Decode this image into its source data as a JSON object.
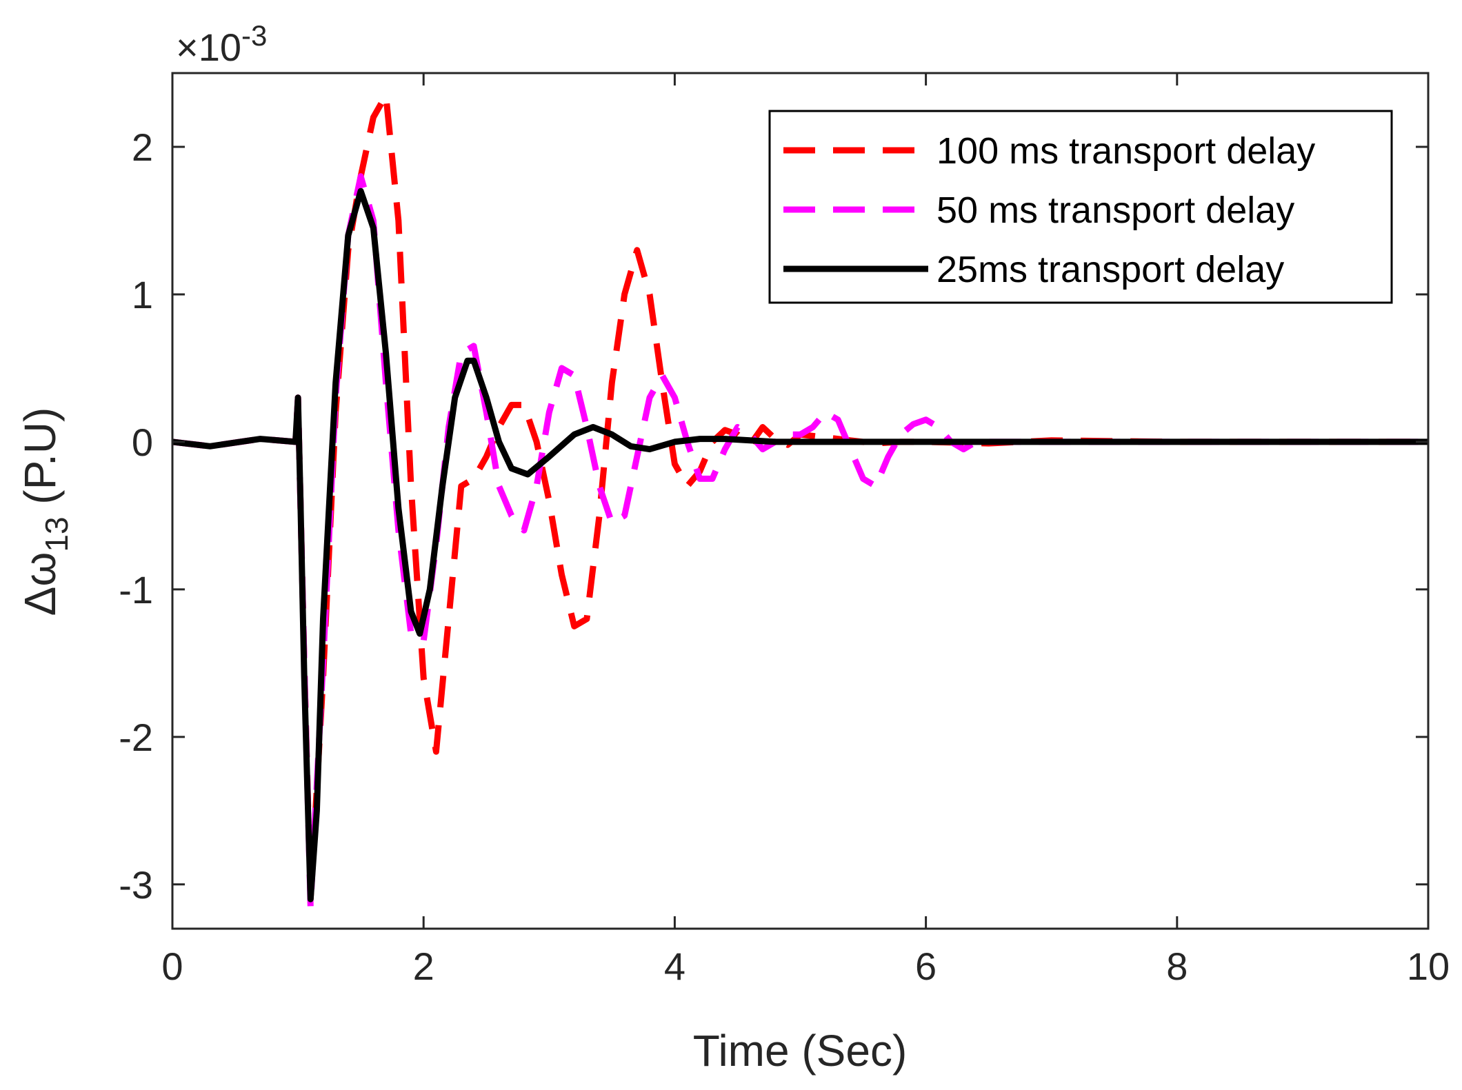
{
  "chart_data": {
    "type": "line",
    "title": "",
    "xlabel": "Time (Sec)",
    "ylabel_prefix": "Δω",
    "ylabel_subscript": "13",
    "ylabel_suffix": " (P.U)",
    "y_exponent_base": "×10",
    "y_exponent_power": "-3",
    "xlim": [
      0,
      10
    ],
    "ylim": [
      -3.3,
      2.5
    ],
    "xticks": [
      0,
      2,
      4,
      6,
      8,
      10
    ],
    "xtick_labels": [
      "0",
      "2",
      "4",
      "6",
      "8",
      "10"
    ],
    "yticks": [
      -3,
      -2,
      -1,
      0,
      1,
      2
    ],
    "ytick_labels": [
      "-3",
      "-2",
      "-1",
      "0",
      "1",
      "2"
    ],
    "grid": false,
    "legend_position": "top-right",
    "series": [
      {
        "name": "100 ms transport delay",
        "color": "#ff0000",
        "style": "dashed",
        "x": [
          0,
          0.3,
          0.7,
          0.98,
          1.0,
          1.05,
          1.1,
          1.2,
          1.3,
          1.4,
          1.5,
          1.6,
          1.7,
          1.8,
          1.9,
          2.0,
          2.1,
          2.2,
          2.3,
          2.4,
          2.5,
          2.6,
          2.7,
          2.8,
          2.9,
          3.0,
          3.1,
          3.2,
          3.3,
          3.4,
          3.5,
          3.6,
          3.7,
          3.8,
          3.9,
          4.0,
          4.1,
          4.2,
          4.3,
          4.4,
          4.5,
          4.6,
          4.7,
          4.8,
          4.9,
          5.0,
          5.2,
          5.4,
          5.6,
          5.8,
          6.0,
          6.5,
          7.0,
          8.0,
          9.0,
          10.0
        ],
        "y": [
          0,
          -0.03,
          0.02,
          0,
          0.3,
          -1.5,
          -3.1,
          -1.6,
          0.2,
          1.3,
          1.8,
          2.2,
          2.35,
          1.5,
          -0.3,
          -1.6,
          -2.1,
          -1.2,
          -0.3,
          -0.25,
          -0.1,
          0.1,
          0.25,
          0.25,
          0.0,
          -0.4,
          -0.9,
          -1.25,
          -1.2,
          -0.5,
          0.4,
          1.0,
          1.3,
          1.0,
          0.4,
          -0.15,
          -0.3,
          -0.2,
          0.0,
          0.08,
          0.05,
          -0.02,
          0.1,
          0.02,
          -0.02,
          0.05,
          0.03,
          0.01,
          -0.01,
          0.0,
          0.0,
          -0.01,
          0.01,
          0.0,
          0.0,
          0.0
        ]
      },
      {
        "name": "50 ms transport delay",
        "color": "#ff00ff",
        "style": "dashed",
        "x": [
          0,
          0.3,
          0.7,
          0.98,
          1.0,
          1.05,
          1.1,
          1.2,
          1.3,
          1.4,
          1.5,
          1.6,
          1.7,
          1.8,
          1.9,
          2.0,
          2.1,
          2.2,
          2.3,
          2.4,
          2.5,
          2.6,
          2.7,
          2.8,
          2.9,
          3.0,
          3.1,
          3.2,
          3.3,
          3.4,
          3.5,
          3.6,
          3.7,
          3.8,
          3.9,
          4.0,
          4.1,
          4.2,
          4.3,
          4.4,
          4.5,
          4.6,
          4.7,
          4.8,
          4.9,
          5.0,
          5.1,
          5.2,
          5.3,
          5.4,
          5.5,
          5.6,
          5.7,
          5.8,
          5.9,
          6.0,
          6.1,
          6.2,
          6.3,
          6.4,
          6.5,
          7.0,
          7.5,
          8.0,
          9.0,
          10.0
        ],
        "y": [
          0,
          -0.03,
          0.02,
          0,
          0.3,
          -1.5,
          -3.15,
          -1.5,
          0.3,
          1.4,
          1.8,
          1.5,
          0.4,
          -0.6,
          -1.3,
          -1.35,
          -0.7,
          0.1,
          0.6,
          0.65,
          0.2,
          -0.3,
          -0.5,
          -0.6,
          -0.3,
          0.2,
          0.5,
          0.45,
          0.1,
          -0.3,
          -0.55,
          -0.5,
          -0.1,
          0.3,
          0.45,
          0.3,
          0.0,
          -0.25,
          -0.25,
          -0.05,
          0.1,
          0.05,
          -0.05,
          0.0,
          0.05,
          0.05,
          0.1,
          0.2,
          0.15,
          -0.05,
          -0.25,
          -0.3,
          -0.1,
          0.05,
          0.12,
          0.15,
          0.1,
          0.0,
          -0.05,
          0.0,
          0.0,
          0.0,
          0.0,
          0.0,
          0.0,
          0.0
        ]
      },
      {
        "name": "25ms transport delay",
        "color": "#000000",
        "style": "solid",
        "x": [
          0,
          0.3,
          0.7,
          0.98,
          1.0,
          1.02,
          1.05,
          1.1,
          1.15,
          1.2,
          1.3,
          1.4,
          1.5,
          1.6,
          1.7,
          1.8,
          1.9,
          1.97,
          2.05,
          2.15,
          2.25,
          2.35,
          2.4,
          2.5,
          2.6,
          2.7,
          2.83,
          3.0,
          3.2,
          3.35,
          3.5,
          3.65,
          3.8,
          4.0,
          4.2,
          4.4,
          4.6,
          4.8,
          5.0,
          6.0,
          7.0,
          8.0,
          9.0,
          10.0
        ],
        "y": [
          0,
          -0.03,
          0.02,
          0,
          0.3,
          -0.4,
          -1.6,
          -3.1,
          -2.5,
          -1.2,
          0.4,
          1.4,
          1.7,
          1.45,
          0.6,
          -0.45,
          -1.15,
          -1.3,
          -1.0,
          -0.3,
          0.3,
          0.55,
          0.55,
          0.3,
          0.0,
          -0.18,
          -0.22,
          -0.1,
          0.05,
          0.1,
          0.05,
          -0.03,
          -0.05,
          0.0,
          0.02,
          0.02,
          0.01,
          0.0,
          0.0,
          0.0,
          0.0,
          0.0,
          0.0,
          0.0
        ]
      }
    ]
  }
}
